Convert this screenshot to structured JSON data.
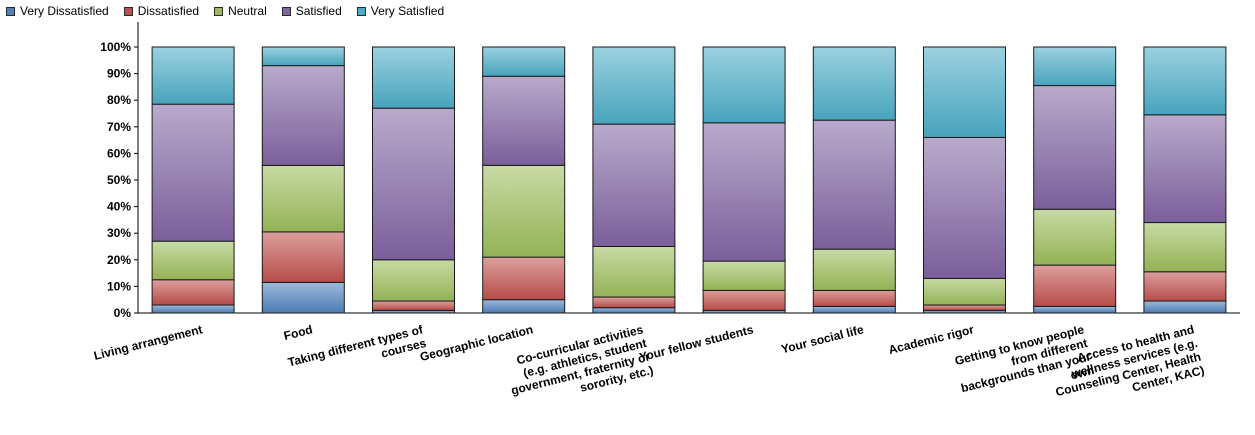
{
  "chart_data": {
    "type": "bar",
    "stacked": true,
    "title": "",
    "xlabel": "",
    "ylabel": "",
    "ylim": [
      0,
      100
    ],
    "yticks": [
      "0%",
      "10%",
      "20%",
      "30%",
      "40%",
      "50%",
      "60%",
      "70%",
      "80%",
      "90%",
      "100%"
    ],
    "legend_position": "top-left",
    "categories": [
      "Living arrangement",
      "Food",
      "Taking different types of courses",
      "Geographic location",
      "Co-curricular activities (e.g. athletics, student government, fraternity or sorority, etc.)",
      "Your fellow students",
      "Your social life",
      "Academic rigor",
      "Getting to know people from different backgrounds than your own",
      "Access to health and wellness services (e.g. Counseling Center, Health Center, KAC)"
    ],
    "category_lines": [
      [
        "Living arrangement"
      ],
      [
        "Food"
      ],
      [
        "Taking different types of",
        "courses"
      ],
      [
        "Geographic location"
      ],
      [
        "Co-curricular activities",
        "(e.g. athletics, student",
        "government, fraternity or",
        "sorority, etc.)"
      ],
      [
        "Your fellow students"
      ],
      [
        "Your social life"
      ],
      [
        "Academic rigor"
      ],
      [
        "Getting to know people",
        "from different",
        "backgrounds than your",
        "own"
      ],
      [
        "Access to health and",
        "wellness services (e.g.",
        "Counseling Center, Health",
        "Center, KAC)"
      ]
    ],
    "series": [
      {
        "name": "Very Dissatisfied",
        "color": "#4f81bd",
        "values": [
          3,
          11.5,
          1,
          5,
          2,
          1,
          2.5,
          1,
          2.5,
          4.5
        ]
      },
      {
        "name": "Dissatisfied",
        "color": "#c0504d",
        "values": [
          9.5,
          19,
          3.5,
          16,
          4,
          7.5,
          6,
          2,
          15.5,
          11
        ]
      },
      {
        "name": "Neutral",
        "color": "#9bbb59",
        "values": [
          14.5,
          25,
          15.5,
          34.5,
          19,
          11,
          15.5,
          10,
          21,
          18.5
        ]
      },
      {
        "name": "Satisfied",
        "color": "#8064a2",
        "values": [
          51.5,
          37.5,
          57,
          33.5,
          46,
          52,
          48.5,
          53,
          46.5,
          40.5
        ]
      },
      {
        "name": "Very Satisfied",
        "color": "#4bacc6",
        "values": [
          21.5,
          7,
          23,
          11,
          29,
          28.5,
          27.5,
          34,
          14.5,
          25.5
        ]
      }
    ]
  }
}
